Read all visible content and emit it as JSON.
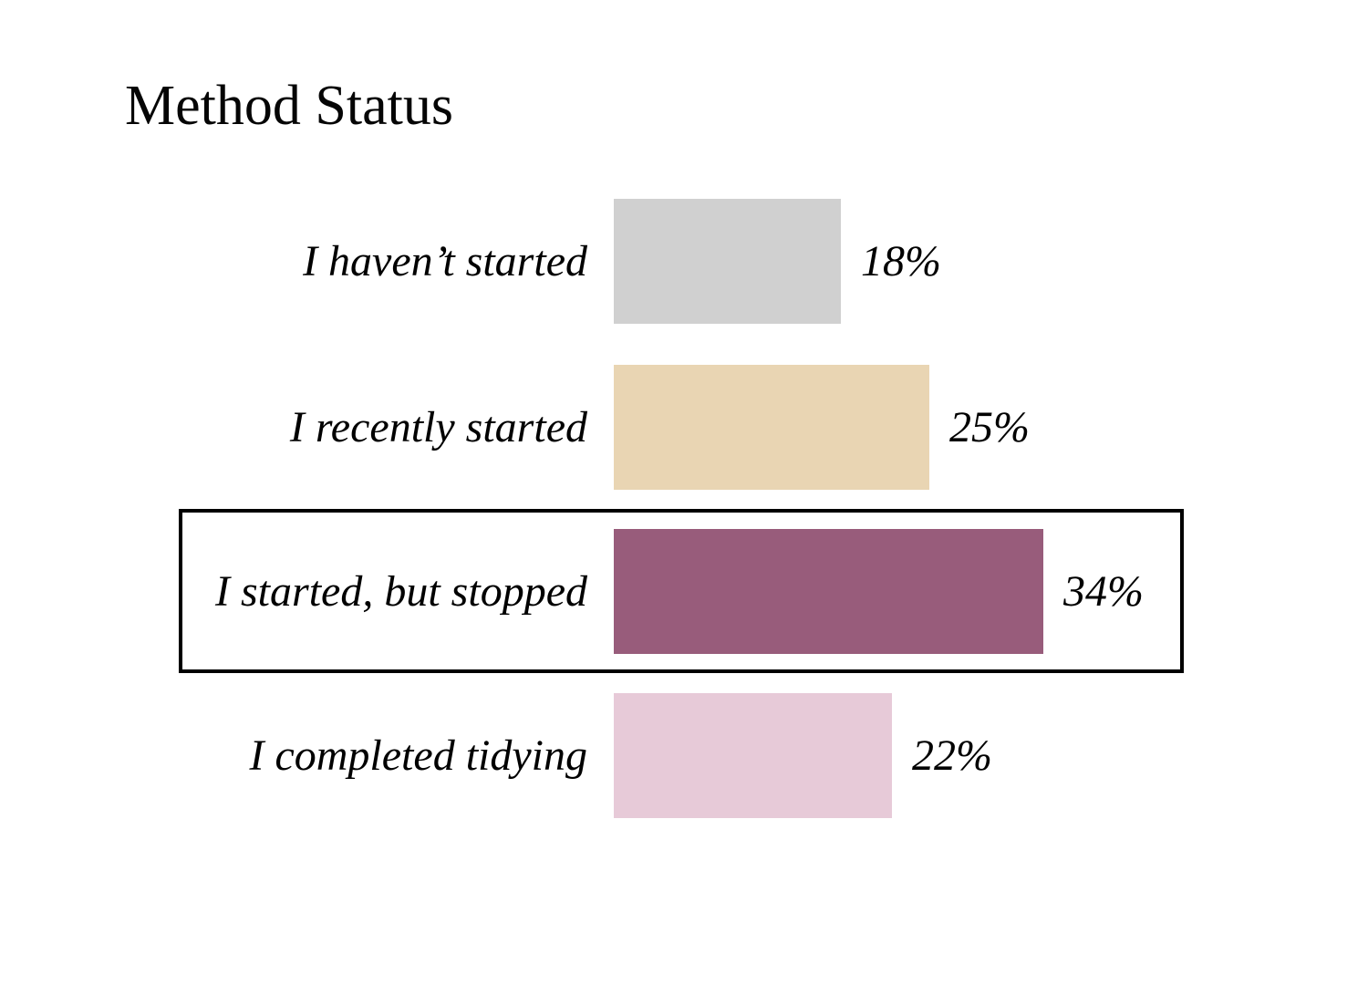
{
  "title": "Method Status",
  "chart_data": {
    "type": "bar",
    "orientation": "horizontal",
    "title": "Method Status",
    "categories": [
      "I haven’t started",
      "I recently started",
      "I started, but stopped",
      "I completed tidying"
    ],
    "values": [
      18,
      25,
      34,
      22
    ],
    "value_labels": [
      "18%",
      "25%",
      "34%",
      "22%"
    ],
    "bar_colors": [
      "#d0d0d0",
      "#e9d5b3",
      "#985c7b",
      "#e7cad8"
    ],
    "highlighted_index": 2,
    "highlight_border_color": "#000000",
    "xlim": [
      0,
      100
    ],
    "xlabel": "",
    "ylabel": "",
    "grid": false,
    "legend": false,
    "value_label_position": "right-of-bar",
    "category_label_position": "left-of-bar"
  },
  "colors": {
    "background": "#ffffff",
    "text": "#000000"
  }
}
